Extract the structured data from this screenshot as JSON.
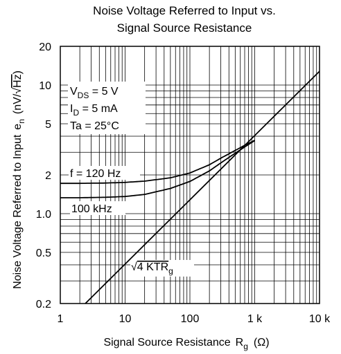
{
  "chart_data": {
    "type": "line",
    "title": "Noise Voltage Referred to Input vs. Signal Source Resistance",
    "title_lines": [
      "Noise Voltage Referred to Input vs.",
      "Signal Source Resistance"
    ],
    "xlabel": "Signal Source Resistance",
    "xlabel_symbol": "R",
    "xlabel_sub": "g",
    "xlabel_unit": "(Ω)",
    "ylabel": "Noise Voltage Referred to Input",
    "ylabel_symbol": "e",
    "ylabel_sub": "n",
    "ylabel_unit_open": "(nV/",
    "ylabel_unit_root": "√",
    "ylabel_unit_hz": "Hz",
    "ylabel_unit_close": ")",
    "xscale": "log",
    "yscale": "log",
    "xlim": [
      1,
      10000
    ],
    "ylim": [
      0.2,
      20
    ],
    "grid": true,
    "x_ticks": [
      {
        "value": 1,
        "label": "1"
      },
      {
        "value": 10,
        "label": "10"
      },
      {
        "value": 100,
        "label": "100"
      },
      {
        "value": 1000,
        "label": "1 k"
      },
      {
        "value": 10000,
        "label": "10 k"
      }
    ],
    "y_ticks": [
      {
        "value": 0.2,
        "label": "0.2"
      },
      {
        "value": 0.5,
        "label": "0.5"
      },
      {
        "value": 1,
        "label": "1.0"
      },
      {
        "value": 2,
        "label": "2"
      },
      {
        "value": 5,
        "label": "5"
      },
      {
        "value": 10,
        "label": "10"
      },
      {
        "value": 20,
        "label": "20"
      }
    ],
    "conditions": [
      {
        "main": "V",
        "sub": "DS",
        "rest": " = 5 V"
      },
      {
        "main": "I",
        "sub": "D",
        "rest": " = 5 mA"
      },
      {
        "main": "Ta = 25°C",
        "sub": "",
        "rest": ""
      }
    ],
    "series": [
      {
        "name": "f = 120 Hz",
        "x": [
          1,
          2,
          5,
          10,
          20,
          50,
          100,
          200,
          300,
          500,
          700,
          1000
        ],
        "y": [
          1.72,
          1.72,
          1.73,
          1.75,
          1.79,
          1.9,
          2.07,
          2.4,
          2.7,
          3.1,
          3.4,
          3.72
        ]
      },
      {
        "name": "100 kHz",
        "x": [
          1,
          2,
          5,
          10,
          20,
          50,
          100,
          200,
          300,
          500,
          700,
          1000
        ],
        "y": [
          1.33,
          1.33,
          1.34,
          1.36,
          1.41,
          1.57,
          1.78,
          2.15,
          2.48,
          2.95,
          3.3,
          3.7
        ]
      },
      {
        "name": "√4 KTRg",
        "label_root": "√",
        "label_main": "4 KTR",
        "label_sub": "g",
        "x": [
          2.43,
          10000
        ],
        "y": [
          0.2,
          12.8
        ]
      }
    ]
  }
}
